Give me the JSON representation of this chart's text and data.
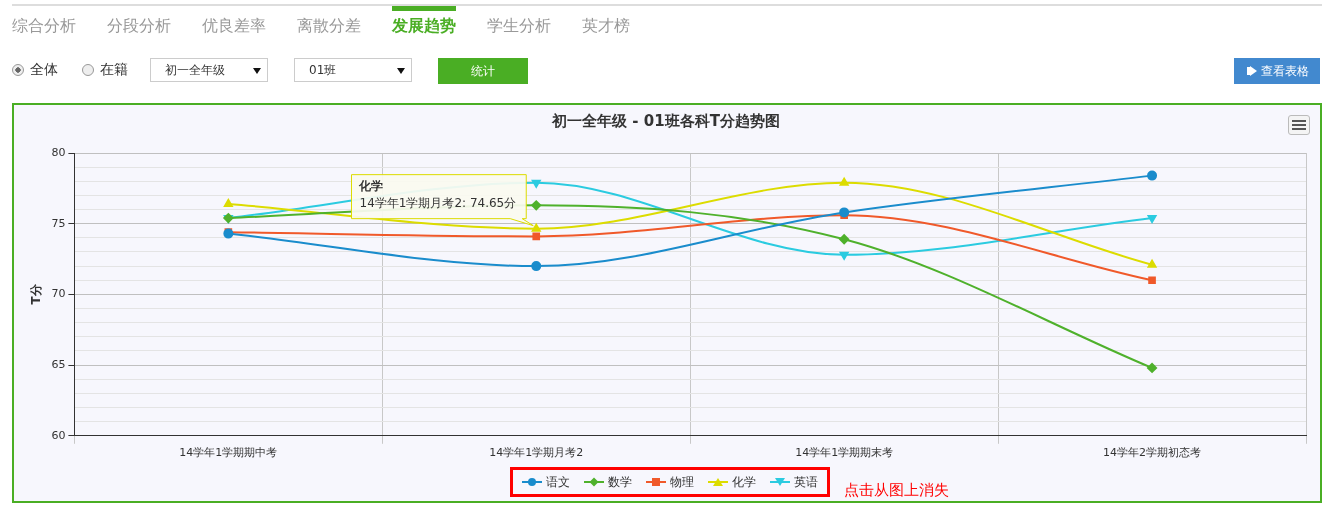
{
  "chart_data": {
    "type": "line",
    "title": "初一全年级 - 01班各科T分趋势图",
    "ylabel": "T分",
    "categories": [
      "14学年1学期期中考",
      "14学年1学期月考2",
      "14学年1学期期末考",
      "14学年2学期初态考"
    ],
    "series": [
      {
        "name": "语文",
        "color": "#1a8ccc",
        "marker": "circle",
        "values": [
          74.3,
          72.0,
          75.8,
          78.4
        ]
      },
      {
        "name": "数学",
        "color": "#4fb12c",
        "marker": "diamond",
        "values": [
          75.4,
          76.3,
          73.9,
          64.8
        ]
      },
      {
        "name": "物理",
        "color": "#f0592a",
        "marker": "square",
        "values": [
          74.4,
          74.1,
          75.6,
          71.0
        ]
      },
      {
        "name": "化学",
        "color": "#dcdc00",
        "marker": "triangle",
        "values": [
          76.4,
          74.65,
          77.9,
          72.1
        ]
      },
      {
        "name": "英语",
        "color": "#2bcbe0",
        "marker": "triangle-down",
        "values": [
          75.4,
          77.9,
          72.8,
          75.4
        ]
      }
    ],
    "ylim": [
      60,
      80
    ],
    "yticks": [
      60,
      {
        "value": 61,
        "label": null
      },
      {
        "value": 62,
        "label": null
      },
      {
        "value": 63,
        "label": null
      },
      {
        "value": 64,
        "label": null
      },
      65,
      {
        "value": 66,
        "label": null
      },
      {
        "value": 67,
        "label": null
      },
      {
        "value": 68,
        "label": null
      },
      {
        "value": 69,
        "label": null
      },
      70,
      {
        "value": 71,
        "label": null
      },
      {
        "value": 72,
        "label": null
      },
      {
        "value": 73,
        "label": null
      },
      {
        "value": 74,
        "label": null
      },
      75,
      {
        "value": 76,
        "label": null
      },
      {
        "value": 77,
        "label": null
      },
      {
        "value": 78,
        "label": null
      },
      {
        "value": 79,
        "label": null
      },
      80
    ],
    "grid": true,
    "legend": "bottom",
    "annotations": [
      "综合分析",
      "分段分析",
      "优良差率",
      "离散分差",
      "发展趋势",
      "学生分析",
      "英才榜",
      "全体",
      "在籍",
      "初一全年级",
      "01班",
      "统计",
      "查看表格",
      {
        "text": "化学\n14学年1学期月考2: 74.65分",
        "x": "14学年1学期月考2",
        "y": 74.65
      },
      "点击从图上消失"
    ]
  }
}
